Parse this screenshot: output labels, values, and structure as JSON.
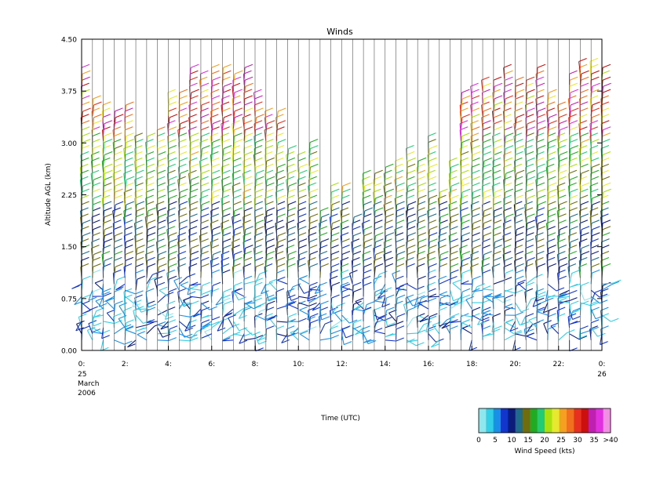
{
  "chart_data": {
    "type": "wind-barb",
    "title": "Winds",
    "ylabel": "Altitude AGL (km)",
    "xlabel": "Time (UTC)",
    "ylim": [
      0,
      4.5
    ],
    "xlim": [
      0,
      24
    ],
    "yticks": [
      "0.00",
      "0.75",
      "1.50",
      "2.25",
      "3.00",
      "3.75",
      "4.50"
    ],
    "xticks": [
      {
        "value": 0,
        "label": "0:"
      },
      {
        "value": 2,
        "label": "2:"
      },
      {
        "value": 4,
        "label": "4:"
      },
      {
        "value": 6,
        "label": "6:"
      },
      {
        "value": 8,
        "label": "8:"
      },
      {
        "value": 10,
        "label": "10:"
      },
      {
        "value": 12,
        "label": "12:"
      },
      {
        "value": 14,
        "label": "14:"
      },
      {
        "value": 16,
        "label": "16:"
      },
      {
        "value": 18,
        "label": "18:"
      },
      {
        "value": 20,
        "label": "20:"
      },
      {
        "value": 22,
        "label": "22:"
      },
      {
        "value": 24,
        "label": "0:"
      }
    ],
    "date_start": [
      "25",
      "March",
      "2006"
    ],
    "date_end": [
      "26"
    ],
    "profile_interval_hours": 0.5,
    "colorbar": {
      "title": "Wind Speed (kts)",
      "labels": [
        "0",
        "5",
        "10",
        "15",
        "20",
        "25",
        "30",
        "35",
        ">40"
      ],
      "colors": [
        "#8ee6ee",
        "#33cfe6",
        "#1a8fe8",
        "#1235cc",
        "#0c1a7a",
        "#1f6b8a",
        "#6e6e10",
        "#22aa22",
        "#22cc77",
        "#a8e010",
        "#e8e830",
        "#f5a020",
        "#f07020",
        "#e83020",
        "#cc1010",
        "#c020b0",
        "#e030e0",
        "#f090e0"
      ]
    },
    "speed_bands_kts": [
      {
        "alt_range_km": [
          0.0,
          1.0
        ],
        "speed_range_kts": [
          2,
          10
        ]
      },
      {
        "alt_range_km": [
          1.0,
          2.0
        ],
        "speed_range_kts": [
          8,
          17
        ]
      },
      {
        "alt_range_km": [
          2.0,
          3.0
        ],
        "speed_range_kts": [
          15,
          25
        ]
      },
      {
        "alt_range_km": [
          3.0,
          4.2
        ],
        "speed_range_kts": [
          22,
          38
        ]
      }
    ],
    "profile_top_km": [
      4.0,
      3.5,
      3.4,
      3.3,
      3.4,
      3.0,
      3.0,
      3.1,
      3.6,
      3.6,
      4.0,
      3.9,
      4.0,
      4.0,
      3.9,
      4.0,
      3.6,
      3.3,
      3.3,
      2.8,
      2.7,
      2.9,
      1.9,
      2.3,
      2.3,
      1.8,
      2.4,
      2.4,
      2.5,
      2.6,
      2.8,
      2.6,
      3.0,
      2.2,
      2.6,
      3.6,
      3.7,
      3.8,
      3.8,
      4.0,
      3.8,
      3.8,
      4.0,
      3.6,
      3.4,
      3.9,
      4.1,
      4.1,
      4.0
    ]
  }
}
